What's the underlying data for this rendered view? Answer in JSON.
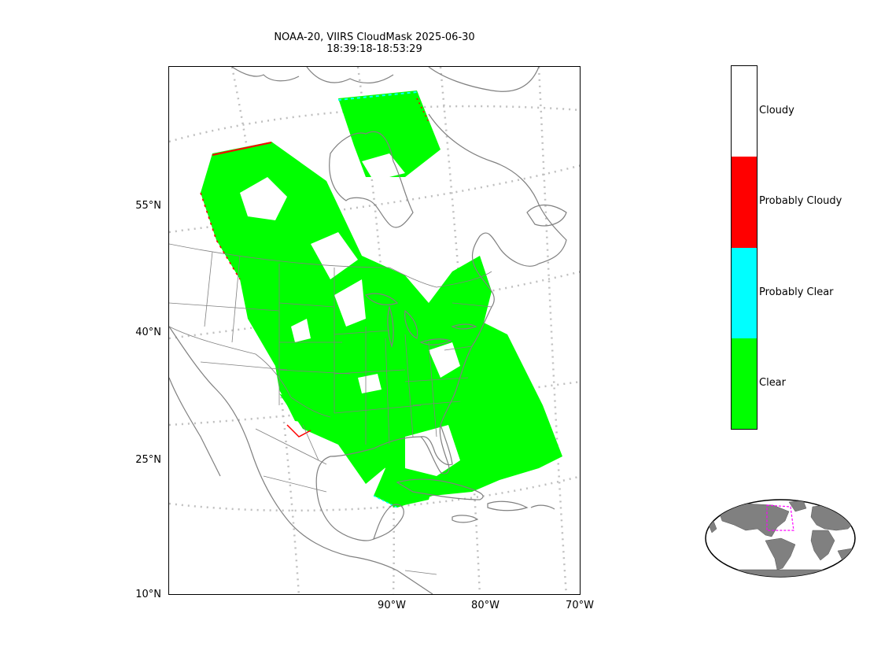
{
  "title_line1": "NOAA-20, VIIRS CloudMask 2025-06-30",
  "title_line2": "18:39:18-18:53:29",
  "lat_labels": [
    "55°N",
    "40°N",
    "25°N",
    "10°N"
  ],
  "lon_labels": [
    "90°W",
    "80°W",
    "70°W"
  ],
  "colorbar": {
    "categories": [
      {
        "label": "Cloudy",
        "color": "#ffffff"
      },
      {
        "label": "Probably Cloudy",
        "color": "#ff0000"
      },
      {
        "label": "Probably Clear",
        "color": "#00ffff"
      },
      {
        "label": "Clear",
        "color": "#00ff00"
      }
    ]
  },
  "colors": {
    "coastline": "#808080",
    "graticule": "#bfbfbf",
    "clear": "#00ff00",
    "probably_cloudy": "#ff0000",
    "probably_clear": "#00ffff",
    "inset_land": "#808080",
    "inset_box": "#ff00ff"
  }
}
